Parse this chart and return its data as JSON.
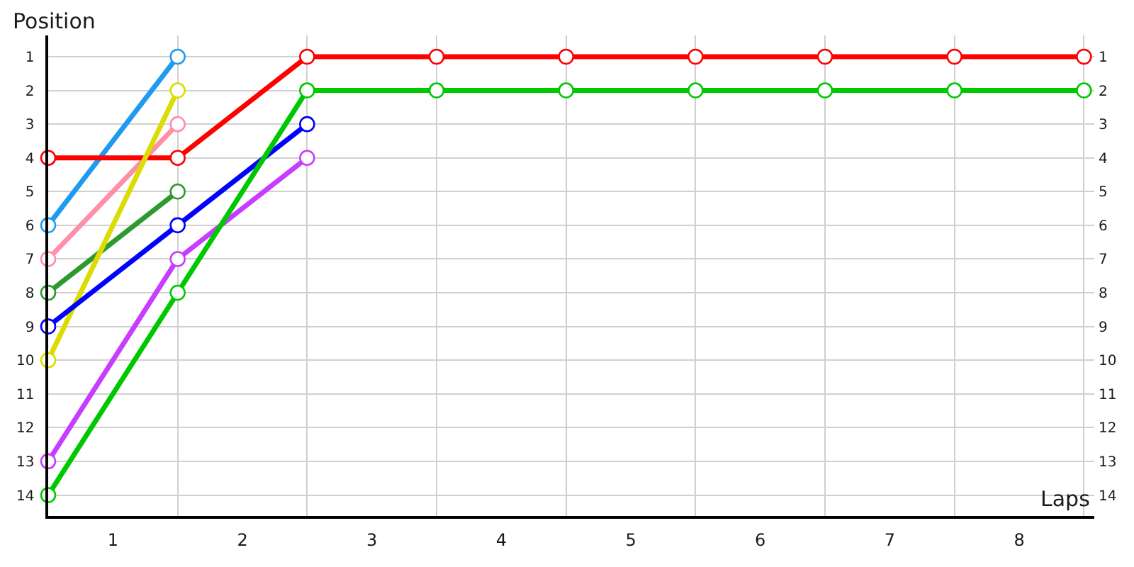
{
  "chart_data": {
    "type": "line",
    "xlabel": "Laps",
    "ylabel": "Position",
    "xlim": [
      0,
      8.08
    ],
    "ylim": [
      14.62,
      0.37
    ],
    "xticks": [
      {
        "value": 0,
        "label": null
      },
      {
        "value": 0.5,
        "label": "1"
      },
      {
        "value": 1,
        "label": null
      },
      {
        "value": 1.5,
        "label": "2"
      },
      {
        "value": 2,
        "label": null
      },
      {
        "value": 2.5,
        "label": "3"
      },
      {
        "value": 3,
        "label": null
      },
      {
        "value": 3.5,
        "label": "4"
      },
      {
        "value": 4,
        "label": null
      },
      {
        "value": 4.5,
        "label": "5"
      },
      {
        "value": 5,
        "label": null
      },
      {
        "value": 5.5,
        "label": "6"
      },
      {
        "value": 6,
        "label": null
      },
      {
        "value": 6.5,
        "label": "7"
      },
      {
        "value": 7,
        "label": null
      },
      {
        "value": 7.5,
        "label": "8"
      },
      {
        "value": 8,
        "label": null
      }
    ],
    "yticks": [
      1,
      2,
      3,
      4,
      5,
      6,
      7,
      8,
      9,
      10,
      11,
      12,
      13,
      14
    ],
    "y2lim": [
      14.62,
      0.37
    ],
    "y2ticks": [
      1,
      2,
      3,
      4,
      5,
      6,
      7,
      8,
      9,
      10,
      11,
      12,
      13,
      14
    ],
    "grid": true,
    "marker": "circle",
    "line_style": "solid",
    "series": [
      {
        "color": "#1e9bf0",
        "x": [
          0,
          1
        ],
        "values": [
          6,
          1
        ]
      },
      {
        "color": "#ff8fa8",
        "x": [
          0,
          1
        ],
        "values": [
          7,
          3
        ]
      },
      {
        "color": "#ff0000",
        "x": [
          0,
          1,
          2,
          3,
          4,
          5,
          6,
          7,
          8
        ],
        "values": [
          4,
          4,
          1,
          1,
          1,
          1,
          1,
          1,
          1
        ]
      },
      {
        "color": "#2e9a2e",
        "x": [
          0,
          1
        ],
        "values": [
          8,
          5
        ]
      },
      {
        "color": "#dcdc00",
        "x": [
          0,
          1
        ],
        "values": [
          10,
          2
        ]
      },
      {
        "color": "#0000ff",
        "x": [
          0,
          1,
          2
        ],
        "values": [
          9,
          6,
          3
        ]
      },
      {
        "color": "#c83cff",
        "x": [
          0,
          1,
          2
        ],
        "values": [
          13,
          7,
          4
        ]
      },
      {
        "color": "#00c800",
        "x": [
          0,
          1,
          2,
          3,
          4,
          5,
          6,
          7,
          8
        ],
        "values": [
          14,
          8,
          2,
          2,
          2,
          2,
          2,
          2,
          2
        ]
      }
    ]
  }
}
